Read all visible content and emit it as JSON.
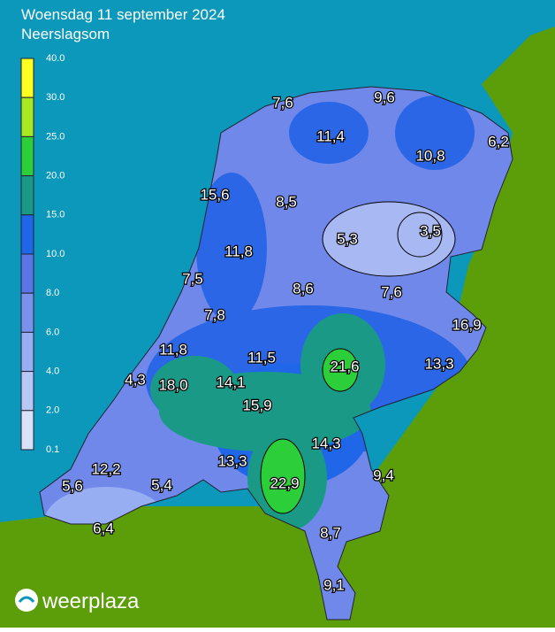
{
  "header": {
    "title": "Woensdag 11 september 2024",
    "subtitle": "Neerslagsom"
  },
  "legend": {
    "labels": [
      "40.0",
      "30.0",
      "25.0",
      "20.0",
      "15.0",
      "10.0",
      "8.0",
      "6.0",
      "4.0",
      "2.0",
      "0.1"
    ],
    "colors": [
      "#ffff20",
      "#a8e820",
      "#2ccf3a",
      "#1a9a86",
      "#1f66e8",
      "#5a76e6",
      "#7a92ec",
      "#98aef2",
      "#b8c8f6",
      "#dae2fa"
    ]
  },
  "stations": [
    "7,6",
    "9,6",
    "11,4",
    "10,8",
    "6,2",
    "15,6",
    "8,5",
    "5,3",
    "3,5",
    "11,8",
    "7,5",
    "8,6",
    "7,6",
    "7,8",
    "16,9",
    "11,8",
    "11,5",
    "21,6",
    "13,3",
    "4,3",
    "18,0",
    "14,1",
    "15,9",
    "14,3",
    "12,2",
    "13,3",
    "9,4",
    "5,6",
    "5,4",
    "22,9",
    "6,4",
    "8,7",
    "9,1"
  ],
  "brand": "weerplaza"
}
